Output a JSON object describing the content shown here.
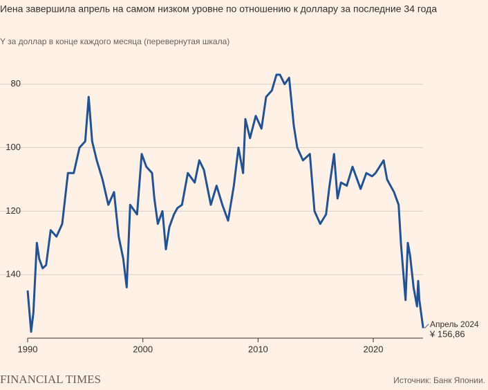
{
  "chart_data": {
    "type": "line",
    "title": "Иена завершила апрель на самом низком уровне по отношению к доллару за последние 34 года",
    "subtitle": "Y за доллар в конце каждого месяца (перевернутая шкала)",
    "x": [
      1990.0,
      1990.3,
      1990.5,
      1990.8,
      1991.0,
      1991.3,
      1991.6,
      1992.0,
      1992.5,
      1993.0,
      1993.5,
      1994.0,
      1994.5,
      1995.0,
      1995.3,
      1995.6,
      1996.0,
      1996.5,
      1997.0,
      1997.5,
      1997.9,
      1998.3,
      1998.6,
      1998.9,
      1999.5,
      1999.9,
      2000.3,
      2000.8,
      2001.0,
      2001.3,
      2001.7,
      2002.0,
      2002.3,
      2002.7,
      2003.0,
      2003.4,
      2003.9,
      2004.5,
      2004.9,
      2005.3,
      2005.9,
      2006.4,
      2006.9,
      2007.4,
      2007.9,
      2008.3,
      2008.7,
      2008.9,
      2009.3,
      2009.8,
      2010.3,
      2010.7,
      2011.2,
      2011.6,
      2011.9,
      2012.3,
      2012.7,
      2013.1,
      2013.4,
      2013.9,
      2014.5,
      2014.9,
      2015.4,
      2015.9,
      2016.2,
      2016.6,
      2016.9,
      2017.2,
      2017.7,
      2018.2,
      2018.9,
      2019.4,
      2019.9,
      2020.2,
      2020.9,
      2021.2,
      2021.8,
      2022.2,
      2022.4,
      2022.8,
      2023.0,
      2023.2,
      2023.5,
      2023.8,
      2023.9,
      2024.0,
      2024.33
    ],
    "values": [
      145,
      158,
      152,
      130,
      135,
      138,
      137,
      126,
      128,
      124,
      108,
      108,
      100,
      98,
      84,
      98,
      104,
      110,
      118,
      114,
      128,
      135,
      144,
      118,
      121,
      102,
      106,
      108,
      116,
      124,
      120,
      132,
      125,
      121,
      119,
      118,
      108,
      111,
      104,
      107,
      118,
      112,
      118,
      123,
      112,
      100,
      108,
      91,
      97,
      90,
      94,
      84,
      82,
      77,
      77,
      80,
      78,
      93,
      100,
      104,
      102,
      120,
      124,
      121,
      112,
      102,
      116,
      111,
      112,
      106,
      113,
      108,
      109,
      108,
      104,
      110,
      114,
      118,
      130,
      148,
      130,
      134,
      144,
      150,
      142,
      148,
      156.86
    ],
    "color": "#1f5296",
    "xlim": [
      1990,
      2024.5
    ],
    "xticks": [
      1990,
      2000,
      2010,
      2020
    ],
    "ylim": [
      72,
      160
    ],
    "yticks": [
      80,
      100,
      120,
      140
    ],
    "y_inverted": true,
    "grid": true,
    "annotation": {
      "label": "Апрель 2024",
      "value_label": "¥ 156,86"
    },
    "brand": "FINANCIAL TIMES",
    "source": "Источник: Банк Японии."
  }
}
